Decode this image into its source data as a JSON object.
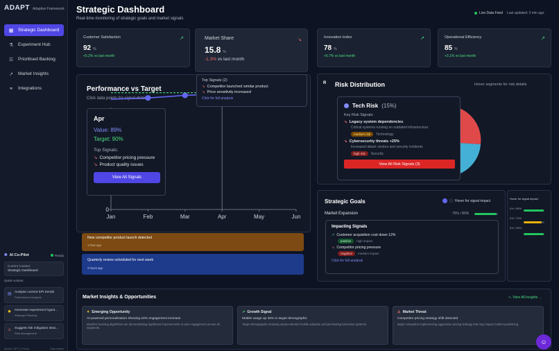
{
  "brand": {
    "logo": "ADAPT",
    "sub": "Adaptive Framework"
  },
  "nav": [
    {
      "label": "Strategic Dashboard",
      "icon": "grid-icon",
      "glyph": "▦"
    },
    {
      "label": "Experiment Hub",
      "icon": "flask-icon",
      "glyph": "⚗"
    },
    {
      "label": "Prioritised Backlog",
      "icon": "list-icon",
      "glyph": "☰"
    },
    {
      "label": "Market Insights",
      "icon": "trend-icon",
      "glyph": "↗"
    },
    {
      "label": "Integrations",
      "icon": "link-icon",
      "glyph": "⚭"
    }
  ],
  "copilot": {
    "title": "AI Co-Pilot",
    "ready": "Ready",
    "context_label": "Current Context:",
    "context_value": "Strategic Dashboard",
    "quick_label": "Quick Actions:",
    "actions": [
      {
        "title": "Analyse current KPI trends",
        "sub": "Performance Analysis"
      },
      {
        "title": "Generate experiment hypot...",
        "sub": "Strategic Planning"
      },
      {
        "title": "Suggest risk mitigation strat...",
        "sub": "Risk Management"
      }
    ],
    "footer_left": "Model: GPT-4 Turbo",
    "footer_right": "Stay aware"
  },
  "header": {
    "title": "Strategic Dashboard",
    "subtitle": "Real-time monitoring of strategic goals and market signals",
    "live": "Live Data Feed",
    "updated": "Last updated: 2 min ago"
  },
  "kpis": [
    {
      "label": "Customer Satisfaction",
      "value": "92",
      "unit": "%",
      "delta": "+5.2% vs last month",
      "dir": "up"
    },
    {
      "label": "Market Share",
      "value": "15.8",
      "unit": "%",
      "delta": "-1.3%",
      "delta_suffix": "vs last month",
      "dir": "down"
    },
    {
      "label": "Innovation Index",
      "value": "78",
      "unit": "%",
      "delta": "+6.7% vs last month",
      "dir": "up"
    },
    {
      "label": "Operational Efficiency",
      "value": "85",
      "unit": "%",
      "delta": "+3.1% vs last month",
      "dir": "up"
    }
  ],
  "market_tooltip": {
    "title": "Top Signals (2)",
    "signals": [
      "Competitor launched similar product",
      "Price sensitivity increased"
    ],
    "link": "Click for full analysis"
  },
  "performance": {
    "title": "Performance vs Target",
    "subtitle": "Click data points for signal details",
    "tooltip": {
      "month": "Apr",
      "value": "Value: 89%",
      "target": "Target: 90%",
      "signals_label": "Top Signals:",
      "signals": [
        "Competitor pricing pressure",
        "Product quality issues"
      ],
      "button": "View All Signals"
    }
  },
  "chart_data": {
    "type": "line",
    "categories": [
      "Jan",
      "Feb",
      "Mar",
      "Apr",
      "May",
      "Jun"
    ],
    "series": [
      {
        "name": "",
        "values": [
          85,
          86,
          88,
          89,
          91,
          93
        ],
        "color": "#6366f1"
      },
      {
        "name": "",
        "values": [
          90,
          90,
          90,
          90,
          90,
          90
        ],
        "color": "#4ade80",
        "dashed": true
      }
    ],
    "ylim": [
      0,
      100
    ],
    "y_tick": "0",
    "x_start": "Jan",
    "visible_from": "Feb"
  },
  "notifications": [
    {
      "title": "New competitor product launch detected",
      "time": "1 hour ago",
      "color": "#7c4a12"
    },
    {
      "title": "Quarterly review scheduled for next week",
      "time": "3 hours ago",
      "color": "#1e3a8a"
    }
  ],
  "risk": {
    "badge": "R",
    "title": "Risk Distribution",
    "hint": "Hover segments for risk details",
    "tooltip": {
      "name": "Tech Risk",
      "pct": "(15%)",
      "signals_label": "Key Risk Signals:",
      "items": [
        {
          "title": "Legacy system dependencies",
          "desc": "Critical systems running on outdated infrastructure",
          "level": "medium risk",
          "cat": "Technology"
        },
        {
          "title": "Cybersecurity threats +25%",
          "desc": "Increased attack vectors and security incidents",
          "level": "high risk",
          "cat": "Security"
        }
      ],
      "button": "View All Risk Signals (3)"
    }
  },
  "goals": {
    "title": "Strategic Goals",
    "hover": "Hover for signal impact",
    "item": "Market Expansion",
    "progress_text": "75% / 80%",
    "progress": 0.94,
    "impact": {
      "title": "Impacting Signals",
      "signals": [
        {
          "title": "Customer acquisition cost down 12%",
          "tag": "positive",
          "level": "high impact"
        },
        {
          "title": "Competitor pricing pressure",
          "tag": "negative",
          "level": "medium impact"
        }
      ],
      "link": "Click for full analysis"
    },
    "side": {
      "hover": "Hover for signal impact",
      "rows": [
        {
          "text": "0% / 85%",
          "pct": 0.95,
          "color": "#22c55e"
        },
        {
          "text": "0% / 75%",
          "pct": 0.85,
          "color": "#eab308"
        },
        {
          "text": "0% / 95%",
          "pct": 0.95,
          "color": "#22c55e"
        }
      ]
    }
  },
  "insights": {
    "title": "Market Insights & Opportunities",
    "view_all": "View All Insights →",
    "cards": [
      {
        "title": "Emerging Opportunity",
        "glyph": "✦",
        "color": "#facc15",
        "desc": "AI-powered personalisation showing 23% engagement increase",
        "detail": "Machine learning algorithms are demonstrating significant improvements in user engagement across all segments."
      },
      {
        "title": "Growth Signal",
        "glyph": "↗",
        "color": "#4ade80",
        "desc": "Mobile usage up 45% in target demographic",
        "detail": "Target demographic showing unprecedented mobile adoption and purchasing behaviour patterns."
      },
      {
        "title": "Market Threat",
        "glyph": "⚠",
        "color": "#f87171",
        "desc": "Competitor pricing strategy shift detected",
        "detail": "Major competitor implementing aggressive pricing strategy that may impact market positioning."
      }
    ]
  }
}
